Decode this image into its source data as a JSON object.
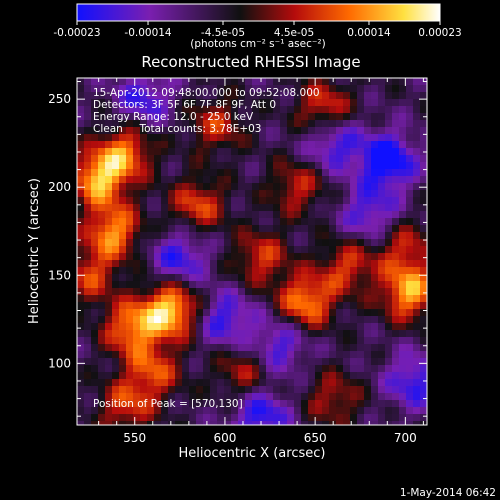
{
  "chart_data": {
    "type": "heatmap",
    "title": "Reconstructed RHESSI Image",
    "xlabel": "Heliocentric X (arcsec)",
    "ylabel": "Heliocentric Y (arcsec)",
    "xlim": [
      518,
      712
    ],
    "ylim": [
      65,
      262
    ],
    "x_ticks": [
      550,
      600,
      650,
      700
    ],
    "y_ticks": [
      100,
      150,
      200,
      250
    ],
    "colorbar": {
      "range": [
        -0.00023,
        0.00023
      ],
      "tick_values": [
        -0.00023,
        -0.00014,
        -4.5e-05,
        4.5e-05,
        0.00014,
        0.00023
      ],
      "tick_labels": [
        "-0.00023",
        "-0.00014",
        "-4.5e-05",
        "4.5e-05",
        "0.00014",
        "0.00023"
      ],
      "units_label": "(photons cm⁻² s⁻¹ asec⁻²)",
      "colors": [
        "#1010ff",
        "#7a1fb0",
        "#101010",
        "#b50c0c",
        "#ff6a00",
        "#ffe040",
        "#ffffff"
      ]
    },
    "info_lines": [
      "15-Apr-2012 09:48:00.000 to 09:52:08.000",
      "Detectors: 3F 5F 6F 7F 8F 9F, Att 0",
      "Energy Range: 12.0 - 25.0 keV",
      "Clean     Total counts: 3.78E+03"
    ],
    "peak_label": "Position of Peak = [570,130]",
    "peak_position": [
      570,
      130
    ],
    "blobs": [
      {
        "x": 570,
        "y": 130,
        "amp": 1.0
      },
      {
        "x": 548,
        "y": 120,
        "amp": 0.75
      },
      {
        "x": 560,
        "y": 95,
        "amp": 0.6
      },
      {
        "x": 530,
        "y": 205,
        "amp": 0.9
      },
      {
        "x": 538,
        "y": 175,
        "amp": 0.8
      },
      {
        "x": 545,
        "y": 220,
        "amp": 0.7
      },
      {
        "x": 525,
        "y": 150,
        "amp": 0.55
      },
      {
        "x": 585,
        "y": 190,
        "amp": 0.6
      },
      {
        "x": 595,
        "y": 235,
        "amp": 0.5
      },
      {
        "x": 620,
        "y": 160,
        "amp": 0.55
      },
      {
        "x": 640,
        "y": 200,
        "amp": 0.5
      },
      {
        "x": 655,
        "y": 245,
        "amp": 0.6
      },
      {
        "x": 645,
        "y": 135,
        "amp": 0.8
      },
      {
        "x": 668,
        "y": 155,
        "amp": 0.55
      },
      {
        "x": 702,
        "y": 140,
        "amp": 0.85
      },
      {
        "x": 700,
        "y": 165,
        "amp": 0.5
      },
      {
        "x": 610,
        "y": 95,
        "amp": 0.45
      },
      {
        "x": 660,
        "y": 80,
        "amp": 0.45
      },
      {
        "x": 545,
        "y": 75,
        "amp": 0.55
      },
      {
        "x": 600,
        "y": 125,
        "amp": -0.55
      },
      {
        "x": 690,
        "y": 215,
        "amp": -0.8
      },
      {
        "x": 660,
        "y": 225,
        "amp": -0.55
      },
      {
        "x": 630,
        "y": 110,
        "amp": -0.5
      },
      {
        "x": 575,
        "y": 160,
        "amp": -0.55
      },
      {
        "x": 620,
        "y": 70,
        "amp": -0.6
      },
      {
        "x": 705,
        "y": 90,
        "amp": -0.55
      },
      {
        "x": 555,
        "y": 250,
        "amp": -0.5
      },
      {
        "x": 680,
        "y": 185,
        "amp": -0.5
      }
    ]
  },
  "footer": {
    "date": "1-May-2014 06:42"
  }
}
